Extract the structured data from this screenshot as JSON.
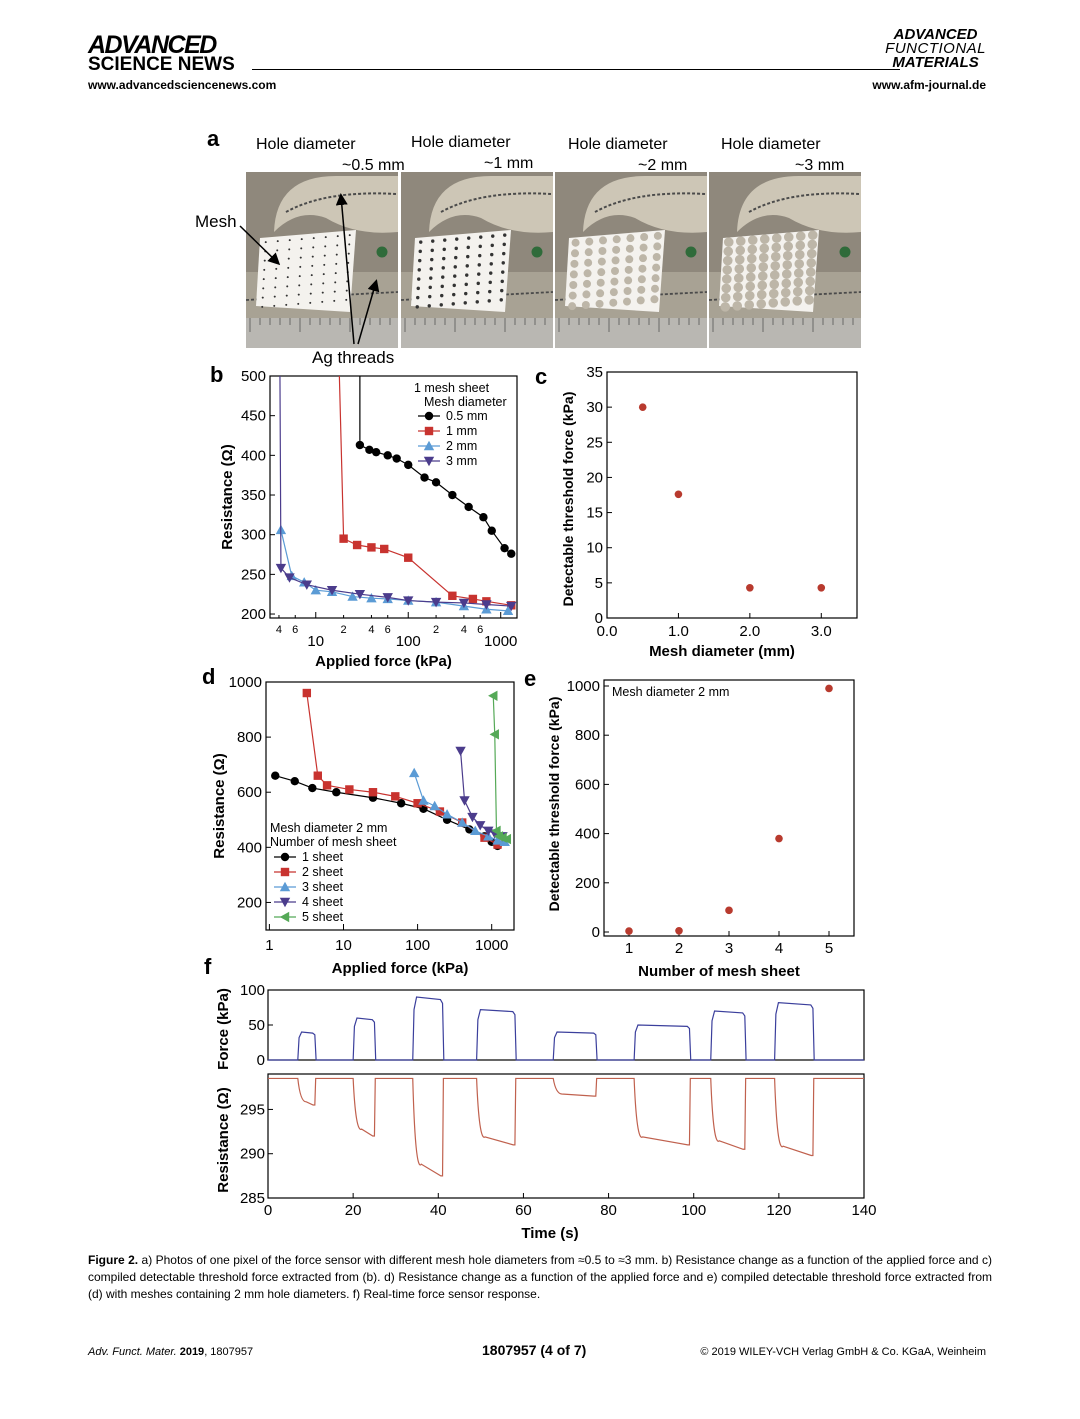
{
  "header": {
    "brand_line1": "ADVANCED",
    "brand_line2": "SCIENCE NEWS",
    "left_url": "www.advancedsciencenews.com",
    "journal_line1": "ADVANCED",
    "journal_line2": "FUNCTIONAL",
    "journal_line3": "MATERIALS",
    "right_url": "www.afm-journal.de"
  },
  "panel_a": {
    "letter": "a",
    "photos": [
      {
        "caption_1": "Hole diameter",
        "caption_2": "~0.5 mm",
        "hole_diameter_mm": 0.5
      },
      {
        "caption_1": "Hole diameter",
        "caption_2": "~1 mm",
        "hole_diameter_mm": 1
      },
      {
        "caption_1": "Hole diameter",
        "caption_2": "~2 mm",
        "hole_diameter_mm": 2
      },
      {
        "caption_1": "Hole diameter",
        "caption_2": "~3 mm",
        "hole_diameter_mm": 3
      }
    ],
    "mesh_label": "Mesh",
    "threads_label": "Ag threads"
  },
  "chart_data": [
    {
      "panel": "b",
      "type": "line",
      "xlabel": "Applied force (kPa)",
      "ylabel": "Resistance (Ω)",
      "xscale": "log",
      "xlim": [
        3.2,
        1500
      ],
      "ylim": [
        195,
        500
      ],
      "yticks": [
        200,
        250,
        300,
        350,
        400,
        450,
        500
      ],
      "xtick_major": [
        {
          "v": 10,
          "l": "10"
        },
        {
          "v": 100,
          "l": "100"
        },
        {
          "v": 1000,
          "l": "1000"
        }
      ],
      "xtick_minor": [
        {
          "v": 4,
          "l": "4"
        },
        {
          "v": 6,
          "l": "6"
        },
        {
          "v": 20,
          "l": "2"
        },
        {
          "v": 40,
          "l": "4"
        },
        {
          "v": 60,
          "l": "6"
        },
        {
          "v": 200,
          "l": "2"
        },
        {
          "v": 400,
          "l": "4"
        },
        {
          "v": 600,
          "l": "6"
        }
      ],
      "legend_title": [
        "1 mesh sheet",
        "Mesh diameter"
      ],
      "legend_position": "top-right",
      "series": [
        {
          "name": "0.5 mm",
          "color": "#000000",
          "marker": "circle",
          "lead": [
            [
              30,
              500
            ]
          ],
          "points": [
            [
              30,
              413
            ],
            [
              38,
              407
            ],
            [
              45,
              404
            ],
            [
              60,
              400
            ],
            [
              75,
              396
            ],
            [
              100,
              388
            ],
            [
              150,
              372
            ],
            [
              200,
              366
            ],
            [
              300,
              350
            ],
            [
              450,
              335
            ],
            [
              650,
              322
            ],
            [
              800,
              305
            ],
            [
              1100,
              283
            ],
            [
              1300,
              276
            ]
          ]
        },
        {
          "name": "1 mm",
          "color": "#c8332f",
          "marker": "square",
          "lead": [
            [
              18,
              500
            ]
          ],
          "points": [
            [
              20,
              295
            ],
            [
              28,
              287
            ],
            [
              40,
              284
            ],
            [
              55,
              282
            ],
            [
              100,
              271
            ],
            [
              300,
              223
            ],
            [
              500,
              219
            ],
            [
              700,
              216
            ],
            [
              1300,
              211
            ]
          ]
        },
        {
          "name": "2 mm",
          "color": "#5b9bd5",
          "marker": "triangle-up",
          "lead": [],
          "points": [
            [
              4.2,
              306
            ],
            [
              5.5,
              248
            ],
            [
              7.5,
              240
            ],
            [
              10,
              230
            ],
            [
              15,
              228
            ],
            [
              25,
              222
            ],
            [
              40,
              220
            ],
            [
              60,
              219
            ],
            [
              100,
              217
            ],
            [
              200,
              215
            ],
            [
              400,
              210
            ],
            [
              700,
              206
            ],
            [
              1200,
              204
            ]
          ]
        },
        {
          "name": "3 mm",
          "color": "#4b3c8c",
          "marker": "triangle-down",
          "lead": [
            [
              4.1,
              500
            ]
          ],
          "points": [
            [
              4.2,
              258
            ],
            [
              5.2,
              246
            ],
            [
              8,
              237
            ],
            [
              15,
              230
            ],
            [
              30,
              225
            ],
            [
              60,
              221
            ],
            [
              100,
              217
            ],
            [
              200,
              215
            ],
            [
              400,
              214
            ],
            [
              700,
              212
            ],
            [
              1300,
              210
            ]
          ]
        }
      ]
    },
    {
      "panel": "c",
      "type": "scatter",
      "xlabel": "Mesh diameter (mm)",
      "ylabel": "Detectable threshold force (kPa)",
      "xlim": [
        0,
        3.5
      ],
      "ylim": [
        0,
        35
      ],
      "xticks": [
        0,
        1,
        2,
        3
      ],
      "xtick_labels": [
        "0.0",
        "1.0",
        "2.0",
        "3.0"
      ],
      "yticks": [
        0,
        5,
        10,
        15,
        20,
        25,
        30,
        35
      ],
      "color": "#b83a2e",
      "points": [
        [
          0.5,
          30
        ],
        [
          1.0,
          17.6
        ],
        [
          2.0,
          4.3
        ],
        [
          3.0,
          4.3
        ]
      ]
    },
    {
      "panel": "d",
      "type": "line",
      "xlabel": "Applied force (kPa)",
      "ylabel": "Resistance (Ω)",
      "xscale": "log",
      "xlim": [
        0.9,
        2000
      ],
      "ylim": [
        100,
        1000
      ],
      "yticks": [
        200,
        400,
        600,
        800,
        1000
      ],
      "xtick_major": [
        {
          "v": 1,
          "l": "1"
        },
        {
          "v": 10,
          "l": "10"
        },
        {
          "v": 100,
          "l": "100"
        },
        {
          "v": 1000,
          "l": "1000"
        }
      ],
      "legend_title": [
        "Mesh diameter 2 mm",
        "Number of mesh sheet"
      ],
      "legend_position": "bottom-left",
      "series": [
        {
          "name": "1 sheet",
          "color": "#000000",
          "marker": "circle",
          "lead": [],
          "points": [
            [
              1.2,
              660
            ],
            [
              2.2,
              640
            ],
            [
              3.8,
              615
            ],
            [
              8,
              600
            ],
            [
              25,
              580
            ],
            [
              60,
              560
            ],
            [
              120,
              540
            ],
            [
              250,
              500
            ],
            [
              500,
              465
            ],
            [
              800,
              440
            ],
            [
              1000,
              420
            ],
            [
              1200,
              405
            ]
          ]
        },
        {
          "name": "2 sheet",
          "color": "#c8332f",
          "marker": "square",
          "lead": [],
          "points": [
            [
              3.2,
              960
            ],
            [
              4.5,
              660
            ],
            [
              6,
              625
            ],
            [
              12,
              610
            ],
            [
              25,
              600
            ],
            [
              50,
              585
            ],
            [
              100,
              560
            ],
            [
              200,
              530
            ],
            [
              400,
              490
            ],
            [
              800,
              435
            ],
            [
              1200,
              410
            ]
          ]
        },
        {
          "name": "3 sheet",
          "color": "#5b9bd5",
          "marker": "triangle-up",
          "lead": [],
          "points": [
            [
              90,
              670
            ],
            [
              120,
              570
            ],
            [
              170,
              550
            ],
            [
              250,
              520
            ],
            [
              400,
              490
            ],
            [
              600,
              460
            ],
            [
              900,
              440
            ],
            [
              1200,
              425
            ],
            [
              1500,
              420
            ]
          ]
        },
        {
          "name": "4 sheet",
          "color": "#4b3c8c",
          "marker": "triangle-down",
          "lead": [],
          "points": [
            [
              380,
              750
            ],
            [
              430,
              570
            ],
            [
              550,
              510
            ],
            [
              700,
              480
            ],
            [
              900,
              460
            ],
            [
              1100,
              450
            ],
            [
              1400,
              440
            ]
          ]
        },
        {
          "name": "5 sheet",
          "color": "#55a957",
          "marker": "triangle-left",
          "lead": [],
          "points": [
            [
              1050,
              950
            ],
            [
              1100,
              810
            ],
            [
              1160,
              460
            ],
            [
              1250,
              440
            ],
            [
              1400,
              435
            ],
            [
              1600,
              430
            ]
          ]
        }
      ]
    },
    {
      "panel": "e",
      "type": "scatter",
      "xlabel": "Number of mesh sheet",
      "ylabel": "Detectable threshold force (kPa)",
      "xlim": [
        0.5,
        5.5
      ],
      "ylim": [
        0,
        1000
      ],
      "xticks": [
        1,
        2,
        3,
        4,
        5
      ],
      "xtick_labels": [
        "1",
        "2",
        "3",
        "4",
        "5"
      ],
      "yticks": [
        0,
        200,
        400,
        600,
        800,
        1000
      ],
      "annotation": "Mesh diameter 2 mm",
      "color": "#b83a2e",
      "points": [
        [
          1,
          4
        ],
        [
          2,
          5
        ],
        [
          3,
          88
        ],
        [
          4,
          380
        ],
        [
          5,
          990
        ]
      ]
    },
    {
      "panel": "f",
      "type": "line",
      "xlabel": "Time (s)",
      "xlim": [
        0,
        140
      ],
      "xticks": [
        0,
        20,
        40,
        60,
        80,
        100,
        120,
        140
      ],
      "top": {
        "ylabel": "Force (kPa)",
        "ylim": [
          0,
          100
        ],
        "yticks": [
          0,
          50,
          100
        ],
        "color": "#3b3f9c",
        "pulses": [
          [
            7,
            11,
            40
          ],
          [
            20,
            25,
            60
          ],
          [
            34,
            41,
            90
          ],
          [
            49,
            58,
            72
          ],
          [
            67,
            77,
            40
          ],
          [
            86,
            99,
            50
          ],
          [
            104,
            112,
            70
          ],
          [
            119,
            128,
            82
          ]
        ]
      },
      "bottom": {
        "ylabel": "Resistance (Ω)",
        "ylim": [
          285,
          299
        ],
        "yticks": [
          285,
          290,
          295
        ],
        "color": "#c0614e",
        "baseline": 298.5,
        "pulses": [
          [
            7,
            11,
            295.5
          ],
          [
            20,
            25,
            292
          ],
          [
            34,
            41,
            287.5
          ],
          [
            49,
            58,
            291
          ],
          [
            67,
            77,
            296.5
          ],
          [
            86,
            99,
            291
          ],
          [
            104,
            112,
            290.5
          ],
          [
            119,
            128,
            289.8
          ]
        ]
      }
    }
  ],
  "caption": {
    "label": "Figure 2.",
    "text": "a) Photos of one pixel of the force sensor with different mesh hole diameters from ≈0.5 to ≈3 mm. b) Resistance change as a function of the applied force and c) compiled detectable threshold force extracted from (b). d) Resistance change as a function of the applied force and e) compiled detectable threshold force extracted from (d) with meshes containing 2 mm hole diameters. f) Real-time force sensor response."
  },
  "footer": {
    "citation_journal": "Adv. Funct. Mater.",
    "citation_year": "2019",
    "citation_id": ", 1807957",
    "page": "1807957  (4 of 7)",
    "copyright": "© 2019 WILEY-VCH Verlag GmbH & Co. KGaA, Weinheim"
  }
}
